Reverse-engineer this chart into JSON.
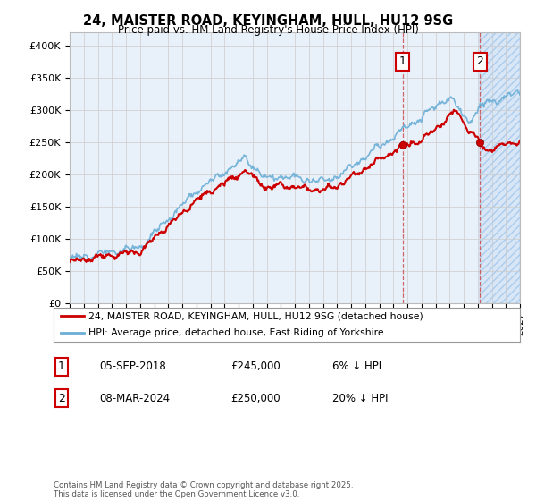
{
  "title": "24, MAISTER ROAD, KEYINGHAM, HULL, HU12 9SG",
  "subtitle": "Price paid vs. HM Land Registry's House Price Index (HPI)",
  "legend_line1": "24, MAISTER ROAD, KEYINGHAM, HULL, HU12 9SG (detached house)",
  "legend_line2": "HPI: Average price, detached house, East Riding of Yorkshire",
  "annotation1_label": "1",
  "annotation1_date": "05-SEP-2018",
  "annotation1_price": "£245,000",
  "annotation1_hpi": "6% ↓ HPI",
  "annotation2_label": "2",
  "annotation2_date": "08-MAR-2024",
  "annotation2_price": "£250,000",
  "annotation2_hpi": "20% ↓ HPI",
  "footer": "Contains HM Land Registry data © Crown copyright and database right 2025.\nThis data is licensed under the Open Government Licence v3.0.",
  "hpi_color": "#6baed6",
  "price_color": "#cc0000",
  "annotation_color": "#cc0000",
  "background_color": "#ffffff",
  "plot_bg_color": "#e8f0fa",
  "grid_color": "#cccccc",
  "ylim": [
    0,
    420000
  ],
  "yticks": [
    0,
    50000,
    100000,
    150000,
    200000,
    250000,
    300000,
    350000,
    400000
  ],
  "sale1_year": 2018.67,
  "sale1_price": 245000,
  "sale2_year": 2024.17,
  "sale2_price": 250000,
  "xmin": 1995,
  "xmax": 2027
}
